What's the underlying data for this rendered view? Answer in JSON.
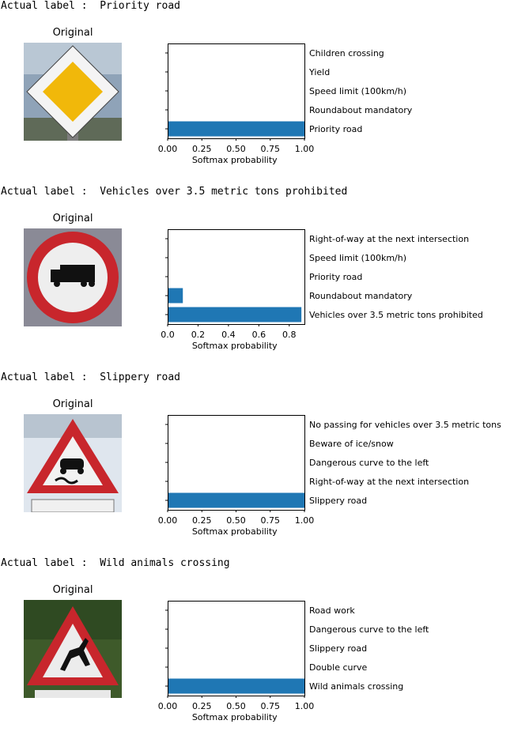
{
  "chart_data": [
    {
      "type": "bar",
      "orientation": "horizontal",
      "actual_label": "Actual label :  Priority road",
      "image_title": "Original",
      "sign": "priority-road-sign",
      "categories": [
        "Priority road",
        "Roundabout mandatory",
        "Speed limit (100km/h)",
        "Yield",
        "Children crossing"
      ],
      "values": [
        1.0,
        0.0,
        0.0,
        0.0,
        0.0
      ],
      "xticks": [
        0,
        0.25,
        0.5,
        0.75,
        1.0
      ],
      "xtick_labels": [
        "0.00",
        "0.25",
        "0.50",
        "0.75",
        "1.00"
      ],
      "xlim": [
        0,
        1.0
      ],
      "xlabel": "Softmax probability",
      "bar_color": "#1f77b4"
    },
    {
      "type": "bar",
      "orientation": "horizontal",
      "actual_label": "Actual label :  Vehicles over 3.5 metric tons prohibited",
      "image_title": "Original",
      "sign": "no-trucks-sign",
      "categories": [
        "Vehicles over 3.5 metric tons prohibited",
        "Roundabout mandatory",
        "Priority road",
        "Speed limit (100km/h)",
        "Right-of-way at the next intersection"
      ],
      "values": [
        0.88,
        0.1,
        0.0,
        0.0,
        0.0
      ],
      "xticks": [
        0,
        0.2,
        0.4,
        0.6,
        0.8
      ],
      "xtick_labels": [
        "0.0",
        "0.2",
        "0.4",
        "0.6",
        "0.8"
      ],
      "xlim": [
        0,
        0.9
      ],
      "xlabel": "Softmax probability",
      "bar_color": "#1f77b4"
    },
    {
      "type": "bar",
      "orientation": "horizontal",
      "actual_label": "Actual label :  Slippery road",
      "image_title": "Original",
      "sign": "slippery-road-sign",
      "categories": [
        "Slippery road",
        "Right-of-way at the next intersection",
        "Dangerous curve to the left",
        "Beware of ice/snow",
        "No passing for vehicles over 3.5 metric tons"
      ],
      "values": [
        1.0,
        0.0,
        0.0,
        0.0,
        0.0
      ],
      "xticks": [
        0,
        0.25,
        0.5,
        0.75,
        1.0
      ],
      "xtick_labels": [
        "0.00",
        "0.25",
        "0.50",
        "0.75",
        "1.00"
      ],
      "xlim": [
        0,
        1.0
      ],
      "xlabel": "Softmax probability",
      "bar_color": "#1f77b4"
    },
    {
      "type": "bar",
      "orientation": "horizontal",
      "actual_label": "Actual label :  Wild animals crossing",
      "image_title": "Original",
      "sign": "wild-animals-sign",
      "categories": [
        "Wild animals crossing",
        "Double curve",
        "Slippery road",
        "Dangerous curve to the left",
        "Road work"
      ],
      "values": [
        1.0,
        0.0,
        0.0,
        0.0,
        0.0
      ],
      "xticks": [
        0,
        0.25,
        0.5,
        0.75,
        1.0
      ],
      "xtick_labels": [
        "0.00",
        "0.25",
        "0.50",
        "0.75",
        "1.00"
      ],
      "xlim": [
        0,
        1.0
      ],
      "xlabel": "Softmax probability",
      "bar_color": "#1f77b4"
    }
  ]
}
